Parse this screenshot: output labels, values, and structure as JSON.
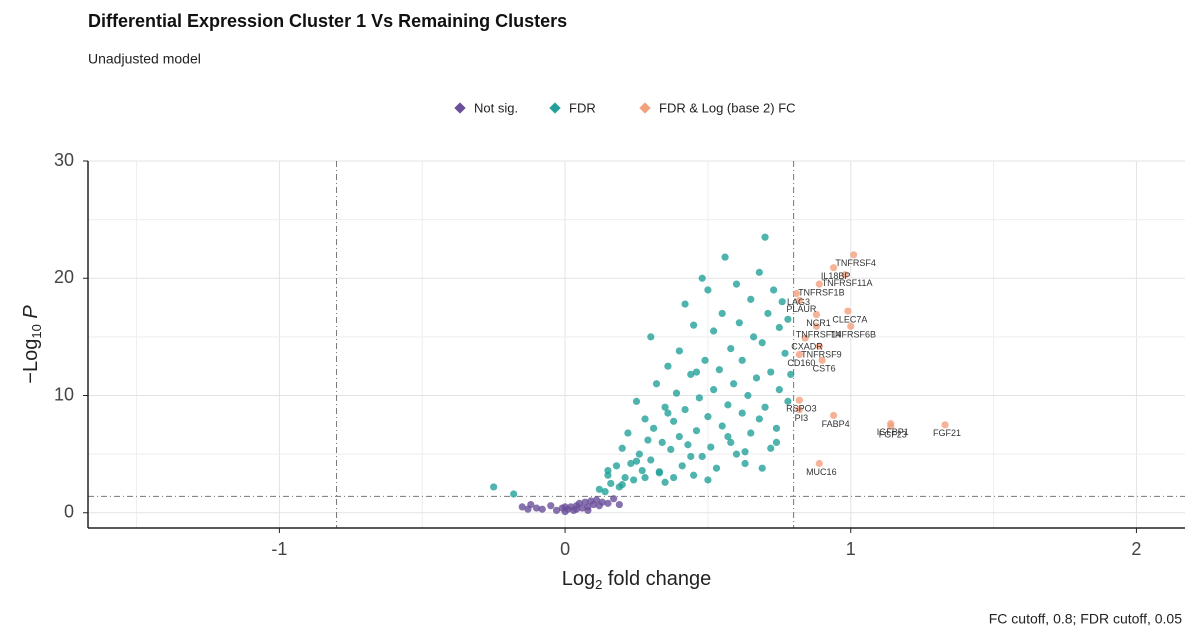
{
  "chart_data": {
    "type": "scatter",
    "title": "Differential Expression Cluster 1 Vs Remaining Clusters",
    "subtitle": "Unadjusted model",
    "xlabel": [
      "Log",
      "2",
      " fold change"
    ],
    "ylabel": [
      "−Log",
      "10",
      " P"
    ],
    "caption": "FC cutoff, 0.8;  FDR cutoff, 0.05",
    "xlim": [
      -1.67,
      2.17
    ],
    "ylim": [
      -1.3,
      30
    ],
    "xticks": [
      -1,
      0,
      1,
      2
    ],
    "yticks": [
      0,
      10,
      20,
      30
    ],
    "grid": true,
    "legend": "top",
    "vlines": [
      -0.8,
      0.8
    ],
    "hline": 1.4,
    "series": [
      {
        "name": "Not sig.",
        "color": "#6a4f9a",
        "x": [
          -0.15,
          -0.12,
          -0.1,
          -0.08,
          -0.05,
          -0.03,
          -0.01,
          0,
          0.01,
          0.02,
          0.03,
          0.04,
          0.05,
          0.06,
          0.07,
          0.08,
          0.09,
          0.1,
          0.11,
          0.12,
          0.13,
          0.15,
          0.17,
          0.19,
          -0.13,
          0.0,
          0.04,
          0.08
        ],
        "values": [
          0.5,
          0.7,
          0.4,
          0.3,
          0.6,
          0.2,
          0.4,
          0.1,
          0.3,
          0.5,
          0.2,
          0.6,
          0.8,
          0.4,
          0.9,
          0.5,
          1.0,
          0.7,
          1.1,
          0.6,
          0.9,
          0.8,
          1.2,
          0.7,
          0.3,
          0.5,
          0.3,
          0.2
        ]
      },
      {
        "name": "FDR",
        "color": "#23a09a",
        "x": [
          -0.25,
          -0.18,
          0.12,
          0.14,
          0.15,
          0.16,
          0.18,
          0.19,
          0.2,
          0.21,
          0.22,
          0.23,
          0.24,
          0.25,
          0.26,
          0.27,
          0.28,
          0.29,
          0.3,
          0.3,
          0.31,
          0.32,
          0.33,
          0.34,
          0.35,
          0.35,
          0.36,
          0.37,
          0.38,
          0.38,
          0.39,
          0.4,
          0.4,
          0.41,
          0.42,
          0.42,
          0.43,
          0.44,
          0.45,
          0.45,
          0.46,
          0.47,
          0.48,
          0.48,
          0.49,
          0.5,
          0.5,
          0.51,
          0.52,
          0.52,
          0.53,
          0.54,
          0.55,
          0.55,
          0.56,
          0.57,
          0.58,
          0.58,
          0.59,
          0.6,
          0.6,
          0.61,
          0.62,
          0.62,
          0.63,
          0.64,
          0.65,
          0.65,
          0.66,
          0.67,
          0.68,
          0.68,
          0.69,
          0.7,
          0.7,
          0.71,
          0.72,
          0.72,
          0.73,
          0.74,
          0.75,
          0.75,
          0.76,
          0.77,
          0.78,
          0.78,
          0.79,
          0.2,
          0.28,
          0.33,
          0.44,
          0.5,
          0.57,
          0.63,
          0.69,
          0.74,
          0.15,
          0.25,
          0.36,
          0.46
        ],
        "values": [
          2.2,
          1.6,
          2.0,
          1.8,
          3.2,
          2.5,
          4.0,
          2.2,
          5.5,
          3.0,
          6.8,
          4.2,
          2.8,
          9.5,
          5.0,
          3.6,
          8.0,
          6.2,
          15.0,
          4.5,
          7.2,
          11.0,
          3.4,
          6.0,
          9.0,
          2.6,
          12.5,
          5.4,
          7.8,
          3.0,
          10.2,
          6.5,
          13.8,
          4.0,
          8.8,
          17.8,
          5.8,
          11.8,
          3.2,
          16.0,
          7.0,
          9.8,
          20.0,
          4.8,
          13.0,
          8.2,
          19.0,
          5.6,
          15.5,
          10.5,
          3.8,
          12.2,
          17.0,
          7.4,
          21.8,
          9.2,
          14.0,
          6.0,
          11.0,
          19.5,
          5.0,
          16.2,
          8.5,
          13.0,
          4.2,
          10.0,
          18.2,
          6.8,
          15.0,
          11.5,
          20.5,
          8.0,
          14.5,
          23.5,
          9.0,
          17.0,
          5.5,
          12.0,
          19.0,
          7.2,
          15.8,
          10.5,
          18.0,
          13.6,
          9.5,
          16.5,
          11.8,
          2.4,
          3.0,
          3.5,
          4.8,
          2.8,
          6.5,
          5.2,
          3.8,
          6.0,
          3.6,
          4.4,
          8.5,
          12.0
        ]
      },
      {
        "name": "FDR & Log (base 2) FC",
        "color": "#f2a07e",
        "x": [
          1.01,
          0.94,
          0.98,
          0.89,
          0.81,
          0.82,
          0.88,
          0.99,
          0.88,
          1.0,
          0.84,
          0.89,
          0.82,
          0.9,
          0.82,
          0.82,
          0.94,
          1.14,
          1.14,
          1.33,
          0.89
        ],
        "values": [
          22.0,
          20.9,
          20.3,
          19.5,
          18.7,
          18.1,
          16.9,
          17.2,
          15.9,
          15.9,
          14.9,
          14.2,
          13.5,
          13.0,
          9.6,
          8.8,
          8.3,
          7.6,
          7.4,
          7.5,
          4.2
        ],
        "labels": [
          "TNFRSF4",
          "IL18BP",
          "TNFRSF11A",
          "TNFRSF1B",
          "LAG3",
          "PLAUR",
          "NCR1",
          "CLEC7A",
          "TNFRSF14",
          "TNFRSF6B",
          "CXADR",
          "TNFRSF9",
          "CD160",
          "CST6",
          "RSPO3",
          "PI3",
          "FABP4",
          "IGFBP1",
          "FGF23",
          "FGF21",
          "MUC16"
        ]
      }
    ]
  }
}
